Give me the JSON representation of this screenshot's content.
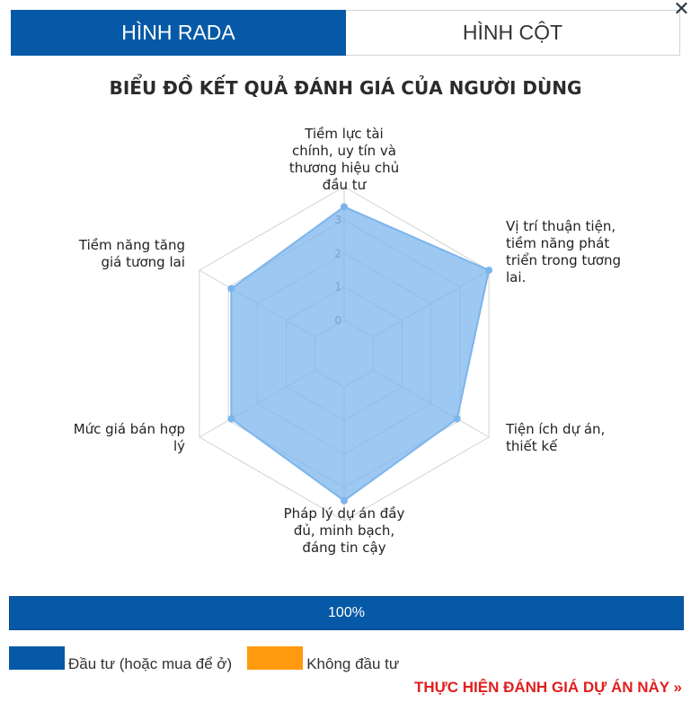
{
  "tabs": [
    {
      "label": "HÌNH RADA",
      "active": true
    },
    {
      "label": "HÌNH CỘT",
      "active": false
    }
  ],
  "close_label": "✕",
  "chart_data": {
    "type": "radar",
    "title": "BIỂU ĐỒ KẾT QUẢ ĐÁNH GIÁ CỦA NGƯỜI DÙNG",
    "categories": [
      "Tiềm lực tài chính, uy tín và thương hiệu chủ đầu tư",
      "Vị trí thuận tiện, tiềm năng phát triển trong tương lai.",
      "Tiện ích dự án, thiết kế",
      "Pháp lý dự án đầy đủ, minh bạch, đáng tin cậy",
      "Mức giá bán hợp lý",
      "Tiềm năng tăng giá tương lai"
    ],
    "category_lines": [
      [
        "Tiềm lực tài",
        "chính, uy tín và",
        "thương hiệu chủ",
        "đầu tư"
      ],
      [
        "Vị trí thuận tiện,",
        "tiềm năng phát",
        "triển trong tương",
        "lai."
      ],
      [
        "Tiện ích dự án,",
        "thiết kế"
      ],
      [
        "Pháp lý dự án đầy",
        "đủ, minh bạch,",
        "đáng tin cậy"
      ],
      [
        "Mức giá bán hợp",
        "lý"
      ],
      [
        "Tiềm năng tăng",
        "giá tương lai"
      ]
    ],
    "tick_labels": [
      "0",
      "1",
      "2",
      "3"
    ],
    "rmin": -1,
    "rmax": 4,
    "values": [
      3.4,
      4.0,
      2.9,
      3.4,
      2.9,
      2.9
    ],
    "fill_color": "#7cb5ec",
    "line_color": "#7cb5ec"
  },
  "progress": {
    "label": "100%",
    "value": 100
  },
  "legend": [
    {
      "label": "Đầu tư (hoặc mua để ở)",
      "color": "#0659a6"
    },
    {
      "label": "Không đầu tư",
      "color": "#ff9a0e"
    }
  ],
  "cta_label": "THỰC HIỆN ĐÁNH GIÁ DỰ ÁN NÀY »"
}
